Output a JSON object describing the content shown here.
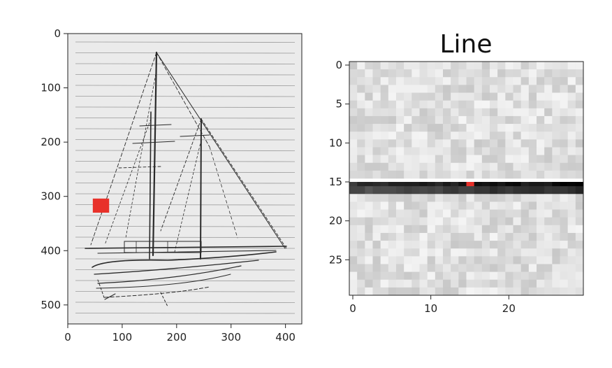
{
  "chart_data": [
    {
      "type": "image",
      "title": "",
      "xlabel": "",
      "ylabel": "",
      "xlim": [
        0,
        430
      ],
      "ylim": [
        535,
        0
      ],
      "x_ticks": [
        0,
        100,
        200,
        300,
        400
      ],
      "x_tick_labels": [
        "0",
        "100",
        "200",
        "300",
        "400"
      ],
      "y_ticks": [
        0,
        100,
        200,
        300,
        400,
        500
      ],
      "y_tick_labels": [
        "0",
        "100",
        "200",
        "300",
        "400",
        "500"
      ],
      "content": "sketch of a sailing ship on lined paper",
      "marker": {
        "x": [
          46,
          76
        ],
        "y": [
          304,
          330
        ],
        "color": "#e8312a"
      }
    },
    {
      "type": "heatmap",
      "title": "Line",
      "xlabel": "",
      "ylabel": "",
      "grid_size": [
        30,
        30
      ],
      "x_ticks": [
        0,
        10,
        20
      ],
      "x_tick_labels": [
        "0",
        "10",
        "20"
      ],
      "y_ticks": [
        0,
        5,
        10,
        15,
        20,
        25
      ],
      "y_tick_labels": [
        "0",
        "5",
        "10",
        "15",
        "20",
        "25"
      ],
      "highlight_rows": [
        15,
        16
      ],
      "highlight_pixel": {
        "x": 15,
        "y": 15,
        "color": "#e8312a"
      }
    }
  ],
  "colors": {
    "marker": "#e8312a",
    "axis": "#222222"
  }
}
